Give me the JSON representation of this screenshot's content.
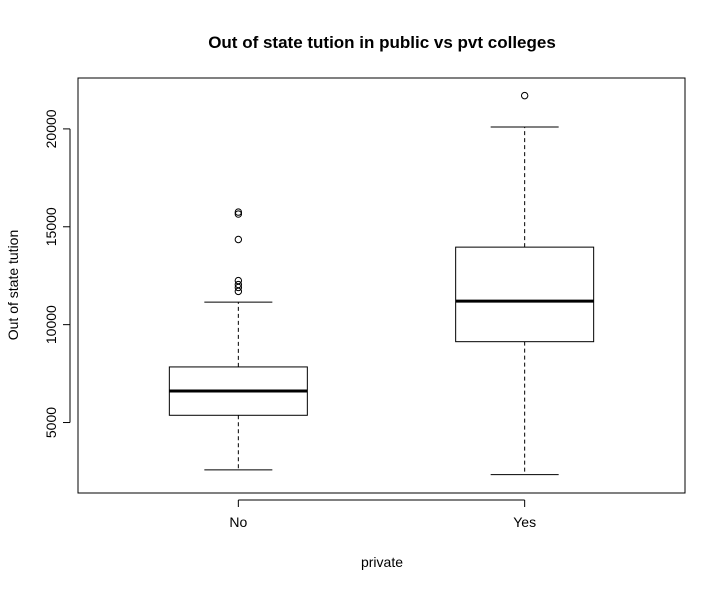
{
  "chart_data": {
    "type": "box",
    "title": "Out of state tution in public vs pvt colleges",
    "xlabel": "private",
    "ylabel": "Out of state tution",
    "ylim": [
      1400,
      22600
    ],
    "yticks": [
      5000,
      10000,
      15000,
      20000
    ],
    "categories": [
      "No",
      "Yes"
    ],
    "boxes": [
      {
        "category": "No",
        "whisker_low": 2580,
        "q1": 5370,
        "median": 6610,
        "q3": 7840,
        "whisker_high": 11150,
        "outliers": [
          11700,
          11900,
          12050,
          12250,
          14350,
          15650,
          15750
        ]
      },
      {
        "category": "Yes",
        "whisker_low": 2340,
        "q1": 9130,
        "median": 11200,
        "q3": 13960,
        "whisker_high": 20100,
        "outliers": [
          21700
        ]
      }
    ],
    "grid": false,
    "legend": "none"
  }
}
